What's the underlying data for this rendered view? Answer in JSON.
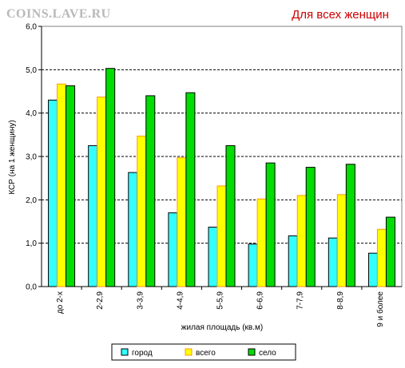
{
  "watermark": "COINS.LAVE.RU",
  "chart_data": {
    "type": "bar",
    "title": "Для всех женщин",
    "xlabel": "жилая площадь (кв.м)",
    "ylabel": "КСР (на 1 женщину)",
    "ylim": [
      0,
      6
    ],
    "yticks": [
      "0,0",
      "1,0",
      "2,0",
      "3,0",
      "4,0",
      "5,0",
      "6,0"
    ],
    "grid": true,
    "legend_position": "bottom",
    "categories": [
      "до 2-х",
      "2-2,9",
      "3-3,9",
      "4-4,9",
      "5-5,9",
      "6-6,9",
      "7-7,9",
      "8-8,9",
      "9  и более"
    ],
    "series": [
      {
        "name": "город",
        "color": "#33ffff",
        "values": [
          4.3,
          3.25,
          2.63,
          1.7,
          1.37,
          0.98,
          1.17,
          1.12,
          0.77
        ]
      },
      {
        "name": "всего",
        "color": "#ffff00",
        "border": "#ff9900",
        "values": [
          4.67,
          4.37,
          3.47,
          2.97,
          2.32,
          2.02,
          2.1,
          2.12,
          1.32
        ]
      },
      {
        "name": "село",
        "color": "#00dd00",
        "values": [
          4.63,
          5.03,
          4.4,
          4.47,
          3.25,
          2.85,
          2.75,
          2.82,
          1.6
        ]
      }
    ]
  }
}
